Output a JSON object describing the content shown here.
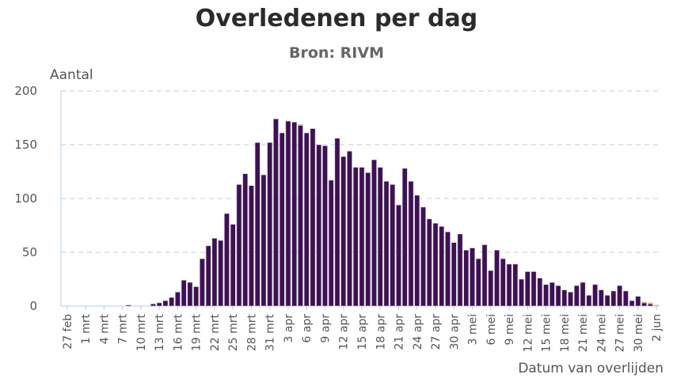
{
  "chart_data": {
    "type": "bar",
    "stacked": true,
    "title": "Overledenen per dag",
    "subtitle": "Bron: RIVM",
    "ylabel": "Aantal",
    "xlabel": "Datum van overlijden",
    "ylim": [
      0,
      200
    ],
    "yticks": [
      0,
      50,
      100,
      150,
      200
    ],
    "grid": true,
    "x_start": "27 feb",
    "x_end": "2 jun",
    "xtick_labels": [
      "27 feb",
      "1 mrt",
      "4 mrt",
      "7 mrt",
      "10 mrt",
      "13 mrt",
      "16 mrt",
      "19 mrt",
      "22 mrt",
      "25 mrt",
      "28 mrt",
      "31 mrt",
      "3 apr",
      "6 apr",
      "9 apr",
      "12 apr",
      "15 apr",
      "18 apr",
      "21 apr",
      "24 apr",
      "27 apr",
      "30 apr",
      "3 mei",
      "6 mei",
      "9 mei",
      "12 mei",
      "15 mei",
      "18 mei",
      "21 mei",
      "24 mei",
      "27 mei",
      "30 mei",
      "2 jun"
    ],
    "series": [
      {
        "color": "#3d1152",
        "values": [
          0,
          0,
          0,
          0,
          0,
          0,
          0,
          0,
          0,
          0,
          1,
          0,
          0,
          0,
          2,
          3,
          5,
          8,
          13,
          24,
          22,
          18,
          44,
          56,
          63,
          61,
          86,
          76,
          113,
          123,
          112,
          152,
          122,
          152,
          174,
          161,
          172,
          171,
          168,
          161,
          165,
          150,
          149,
          117,
          156,
          139,
          144,
          129,
          129,
          124,
          136,
          129,
          116,
          113,
          94,
          128,
          116,
          103,
          92,
          81,
          77,
          74,
          69,
          59,
          67,
          52,
          54,
          44,
          57,
          33,
          52,
          44,
          39,
          39,
          25,
          32,
          32,
          26,
          20,
          22,
          19,
          15,
          13,
          19,
          22,
          10,
          20,
          15,
          10,
          14,
          19,
          14,
          5,
          9,
          3,
          2,
          0
        ]
      },
      {
        "color": "#f5b800",
        "values": [
          0,
          0,
          0,
          0,
          0,
          0,
          0,
          0,
          0,
          0,
          0,
          0,
          0,
          0,
          0,
          0,
          0,
          0,
          0,
          0,
          0,
          0,
          0,
          0,
          0,
          0,
          0,
          0,
          0,
          0,
          0,
          0,
          0,
          0,
          0,
          0,
          0,
          0,
          1,
          0,
          0,
          0,
          0,
          0,
          0,
          0,
          0,
          0,
          0,
          0,
          0,
          0,
          0,
          0,
          0,
          0,
          0,
          0,
          0,
          0,
          0,
          0,
          0,
          0,
          0,
          0,
          0,
          0,
          0,
          0,
          0,
          0,
          0,
          0,
          0,
          0,
          0,
          0,
          0,
          0,
          0,
          0,
          0,
          0,
          0,
          0,
          0,
          0,
          0,
          0,
          0,
          0,
          0,
          0,
          1,
          1,
          1
        ]
      }
    ]
  }
}
